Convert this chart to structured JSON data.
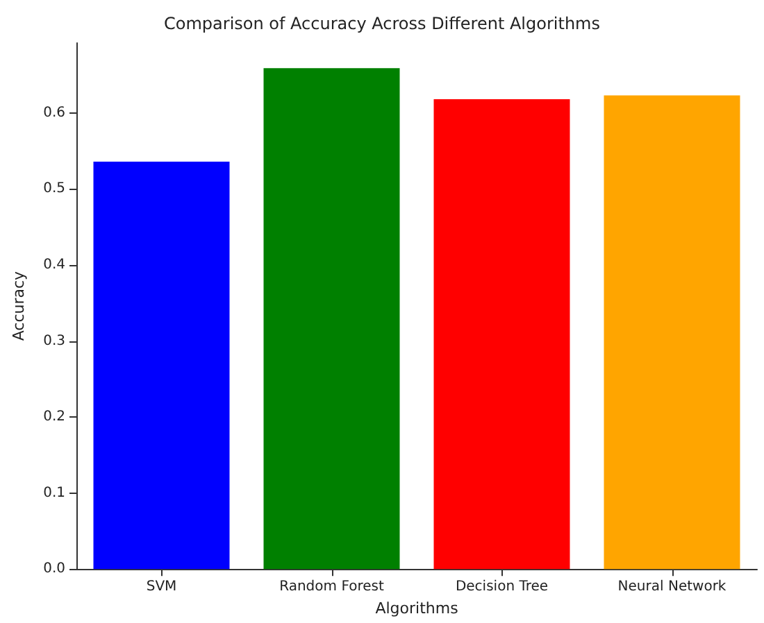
{
  "chart_data": {
    "type": "bar",
    "title": "Comparison of Accuracy Across Different Algorithms",
    "xlabel": "Algorithms",
    "ylabel": "Accuracy",
    "categories": [
      "SVM",
      "Random Forest",
      "Decision Tree",
      "Neural Network"
    ],
    "values": [
      0.536,
      0.659,
      0.618,
      0.623
    ],
    "colors": [
      "#0000ff",
      "#008000",
      "#ff0000",
      "#ffa500"
    ],
    "ylim": [
      0,
      0.692
    ],
    "yticks": [
      {
        "value": 0,
        "label": "0.0"
      },
      0.1,
      0.2,
      0.3,
      0.4,
      0.5,
      0.6
    ],
    "grid": false
  }
}
